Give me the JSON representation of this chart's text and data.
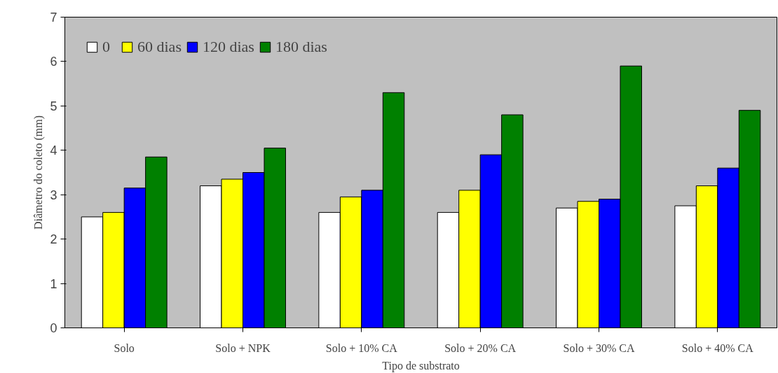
{
  "chart_data": {
    "type": "bar",
    "xlabel": "Tipo de substrato",
    "ylabel": "Diâmetro do coleto (mm)",
    "categories": [
      "Solo",
      "Solo + NPK",
      "Solo + 10% CA",
      "Solo + 20% CA",
      "Solo + 30% CA",
      "Solo + 40% CA"
    ],
    "series": [
      {
        "name": "0",
        "color": "#ffffff",
        "values": [
          2.5,
          3.2,
          2.6,
          2.6,
          2.7,
          2.75
        ]
      },
      {
        "name": "60 dias",
        "color": "#ffff00",
        "values": [
          2.6,
          3.35,
          2.95,
          3.1,
          2.85,
          3.2
        ]
      },
      {
        "name": "120 dias",
        "color": "#0000ff",
        "values": [
          3.15,
          3.5,
          3.1,
          3.9,
          2.9,
          3.6
        ]
      },
      {
        "name": "180 dias",
        "color": "#008000",
        "values": [
          3.85,
          4.05,
          5.3,
          4.8,
          5.9,
          4.9
        ]
      }
    ],
    "ylim": [
      0,
      7
    ],
    "yticks": [
      0,
      1,
      2,
      3,
      4,
      5,
      6,
      7
    ],
    "grid": false,
    "legend": "top left"
  }
}
